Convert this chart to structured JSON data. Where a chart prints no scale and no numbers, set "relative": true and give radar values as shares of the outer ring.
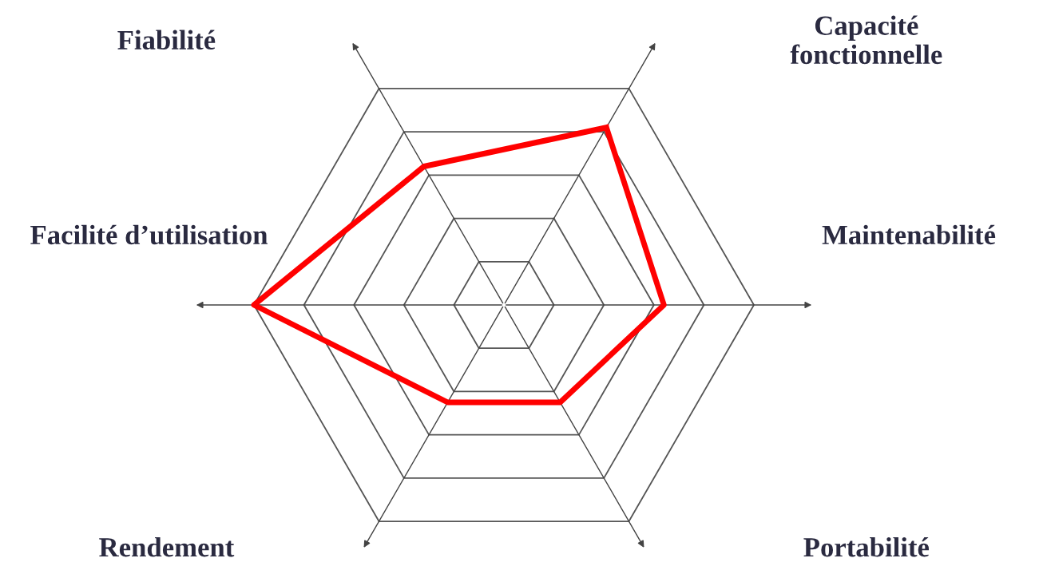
{
  "chart_data": {
    "type": "radar",
    "categories": [
      "Capacité\nfonctionnelle",
      "Maintenabilité",
      "Portabilité",
      "Rendement",
      "Facilité d’utilisation",
      "Fiabilité"
    ],
    "relative": true,
    "grid": true,
    "series": [
      {
        "color": "#ff0000",
        "values": [
          0.82,
          0.64,
          0.45,
          0.45,
          1.0,
          0.64
        ]
      }
    ]
  }
}
